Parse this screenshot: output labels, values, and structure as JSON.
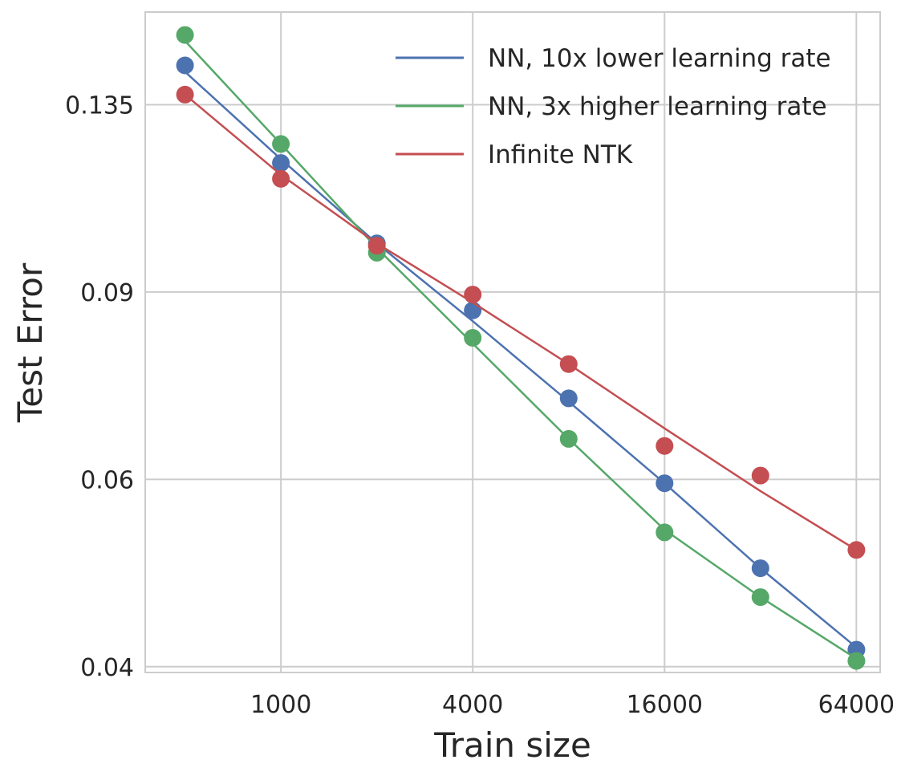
{
  "chart_data": {
    "type": "line",
    "xscale": "log2",
    "yscale": "log",
    "xlabel": "Train size",
    "ylabel": "Test Error",
    "xlim": [
      375,
      76000
    ],
    "ylim": [
      0.0395,
      0.165
    ],
    "xticks": [
      1000,
      4000,
      16000,
      64000
    ],
    "xtick_labels": [
      "1000",
      "4000",
      "16000",
      "64000"
    ],
    "yticks": [
      0.04,
      0.06,
      0.09,
      0.135
    ],
    "ytick_labels": [
      "0.04",
      "0.06",
      "0.09",
      "0.135"
    ],
    "grid": true,
    "legend_position": "top-right",
    "x": [
      500,
      1000,
      2000,
      4000,
      8000,
      16000,
      32000,
      64000
    ],
    "series": [
      {
        "name": "NN, 10x lower learning rate",
        "color": "#4c72b0",
        "points": [
          0.147,
          0.119,
          0.1,
          0.0865,
          0.0715,
          0.0595,
          0.0495,
          0.0415
        ],
        "fit": [
          0.145,
          0.12,
          0.1,
          0.0845,
          0.071,
          0.0595,
          0.0495,
          0.0417
        ]
      },
      {
        "name": "NN, 3x higher learning rate",
        "color": "#55a868",
        "points": [
          0.157,
          0.124,
          0.098,
          0.0815,
          0.0655,
          0.0535,
          0.0465,
          0.0405
        ],
        "fit": [
          0.155,
          0.124,
          0.099,
          0.0805,
          0.0655,
          0.0538,
          0.0465,
          0.0407
        ]
      },
      {
        "name": "Infinite NTK",
        "color": "#c44e52",
        "points": [
          0.138,
          0.115,
          0.0995,
          0.0895,
          0.077,
          0.0645,
          0.0605,
          0.0515
        ],
        "fit": [
          0.138,
          0.116,
          0.1,
          0.088,
          0.077,
          0.067,
          0.0585,
          0.0515
        ]
      }
    ]
  }
}
